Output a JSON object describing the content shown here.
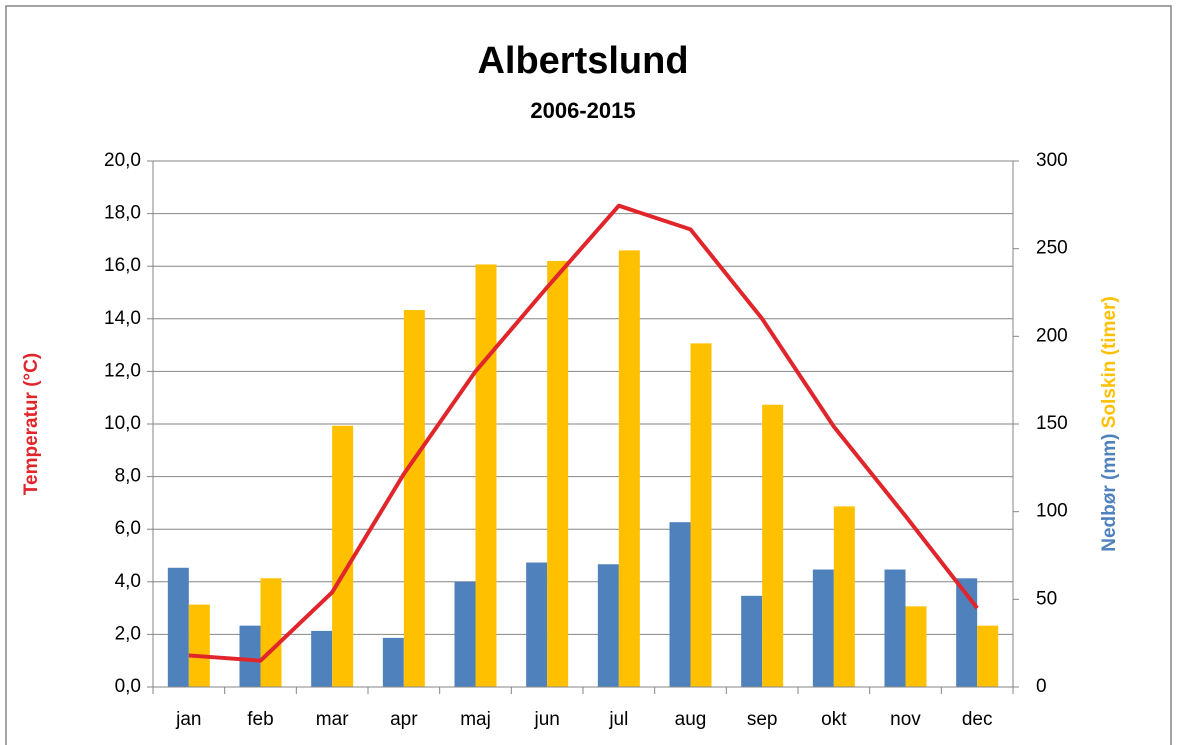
{
  "chart_data": {
    "type": "bar_line",
    "title": "Albertslund",
    "subtitle": "2006-2015",
    "ylabel": "Temperatur (°C)",
    "y2label": [
      "Nedbør (mm)",
      "Solskin (timer)"
    ],
    "categories": [
      "jan",
      "feb",
      "mar",
      "apr",
      "maj",
      "jun",
      "jul",
      "aug",
      "sep",
      "okt",
      "nov",
      "dec"
    ],
    "series": [
      {
        "type": "bar",
        "axis": "y2",
        "color": "#4f81bd",
        "values": [
          68,
          35,
          32,
          28,
          60,
          71,
          70,
          94,
          52,
          67,
          67,
          62
        ]
      },
      {
        "type": "bar",
        "axis": "y2",
        "color": "#ffc000",
        "values": [
          47,
          62,
          149,
          215,
          241,
          243,
          249,
          196,
          161,
          103,
          46,
          35
        ]
      },
      {
        "type": "line",
        "axis": "y",
        "color": "#e0262b",
        "values": [
          1.2,
          1.0,
          3.6,
          8.1,
          12.0,
          15.2,
          18.3,
          17.4,
          14.0,
          9.9,
          6.5,
          3.0
        ]
      }
    ],
    "ylim": [
      0,
      20
    ],
    "yticks": [
      {
        "value": 0,
        "label": "0,0"
      },
      {
        "value": 2,
        "label": "2,0"
      },
      {
        "value": 4,
        "label": "4,0"
      },
      {
        "value": 6,
        "label": "6,0"
      },
      {
        "value": 8,
        "label": "8,0"
      },
      {
        "value": 10,
        "label": "10,0"
      },
      {
        "value": 12,
        "label": "12,0"
      },
      {
        "value": 14,
        "label": "14,0"
      },
      {
        "value": 16,
        "label": "16,0"
      },
      {
        "value": 18,
        "label": "18,0"
      },
      {
        "value": 20,
        "label": "20,0"
      }
    ],
    "y2lim": [
      0,
      300
    ],
    "y2ticks": [
      0,
      50,
      100,
      150,
      200,
      250,
      300
    ],
    "grid": true
  }
}
